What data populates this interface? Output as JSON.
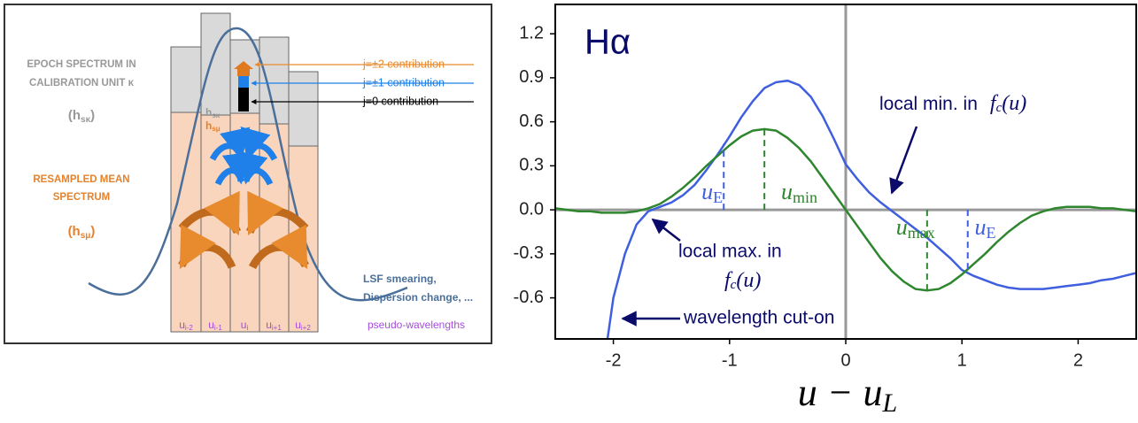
{
  "diagram": {
    "epoch_label": [
      "EPOCH SPECTRUM IN",
      "CALIBRATION UNIT κ"
    ],
    "epoch_symbol": {
      "open": "(h",
      "sub": "sκ",
      "close": ")"
    },
    "resampled_label": [
      "RESAMPLED MEAN",
      "SPECTRUM"
    ],
    "resampled_symbol": {
      "open": "(h",
      "sub": "sμ",
      "close": ")"
    },
    "bar_epoch": {
      "main": "h",
      "sub": "sκ"
    },
    "bar_mean": {
      "main": "h",
      "sub": "sμ"
    },
    "contributions": [
      "j=±2 contribution",
      "j=±1 contribution",
      "j=0 contribution"
    ],
    "lsf_note": [
      "LSF smearing,",
      "Dispersion change, ..."
    ],
    "pixels": [
      {
        "main": "u",
        "sub": "i-2"
      },
      {
        "main": "u",
        "sub": "i-1"
      },
      {
        "main": "u",
        "sub": "i"
      },
      {
        "main": "u",
        "sub": "i+1"
      },
      {
        "main": "u",
        "sub": "i+2"
      }
    ],
    "pixel_axis": "pseudo-wavelengths"
  },
  "chart_data": {
    "type": "line",
    "title": "Hα",
    "xlabel": {
      "main": "u − u",
      "sub": "L"
    },
    "xlim": [
      -2.5,
      2.5
    ],
    "ylim": [
      -0.88,
      1.4
    ],
    "xticks": [
      -2,
      -1,
      0,
      1,
      2
    ],
    "yticks": [
      1.2,
      0.9,
      0.6,
      0.3,
      {
        "value": 0,
        "label": "0.0"
      },
      -0.3,
      -0.6
    ],
    "zero_lines": true,
    "series": [
      {
        "color": "#3f5fdf",
        "x": [
          -2.05,
          -2.0,
          -1.9,
          -1.8,
          -1.7,
          -1.6,
          -1.5,
          -1.4,
          -1.3,
          -1.2,
          -1.1,
          -1.0,
          -0.9,
          -0.8,
          -0.7,
          -0.6,
          -0.5,
          -0.4,
          -0.3,
          -0.2,
          -0.1,
          0.0,
          0.1,
          0.2,
          0.3,
          0.4,
          0.5,
          0.6,
          0.7,
          0.8,
          0.9,
          1.0,
          1.1,
          1.2,
          1.3,
          1.4,
          1.5,
          1.6,
          1.7,
          1.8,
          1.9,
          2.0,
          2.1,
          2.2,
          2.3,
          2.4,
          2.5
        ],
        "values": [
          -0.88,
          -0.6,
          -0.3,
          -0.1,
          -0.01,
          0.02,
          0.05,
          0.1,
          0.17,
          0.27,
          0.38,
          0.5,
          0.63,
          0.74,
          0.83,
          0.87,
          0.88,
          0.85,
          0.77,
          0.64,
          0.48,
          0.31,
          0.21,
          0.12,
          0.05,
          -0.01,
          -0.07,
          -0.13,
          -0.19,
          -0.26,
          -0.33,
          -0.41,
          -0.45,
          -0.48,
          -0.51,
          -0.53,
          -0.54,
          -0.54,
          -0.54,
          -0.53,
          -0.52,
          -0.51,
          -0.5,
          -0.48,
          -0.47,
          -0.45,
          -0.43
        ]
      },
      {
        "color": "#2e862e",
        "x": [
          -2.5,
          -2.4,
          -2.3,
          -2.2,
          -2.1,
          -2.0,
          -1.9,
          -1.8,
          -1.7,
          -1.6,
          -1.5,
          -1.4,
          -1.3,
          -1.2,
          -1.1,
          -1.0,
          -0.9,
          -0.8,
          -0.7,
          -0.6,
          -0.5,
          -0.4,
          -0.3,
          -0.2,
          -0.1,
          0.0,
          0.1,
          0.2,
          0.3,
          0.4,
          0.5,
          0.6,
          0.7,
          0.8,
          0.9,
          1.0,
          1.1,
          1.2,
          1.3,
          1.4,
          1.5,
          1.6,
          1.7,
          1.8,
          1.9,
          2.0,
          2.1,
          2.2,
          2.3,
          2.4,
          2.5
        ],
        "values": [
          0.01,
          0.0,
          -0.01,
          -0.01,
          -0.02,
          -0.02,
          -0.02,
          -0.01,
          0.01,
          0.04,
          0.09,
          0.15,
          0.22,
          0.3,
          0.37,
          0.44,
          0.5,
          0.54,
          0.55,
          0.54,
          0.49,
          0.42,
          0.33,
          0.22,
          0.11,
          0.0,
          -0.11,
          -0.22,
          -0.33,
          -0.42,
          -0.49,
          -0.54,
          -0.55,
          -0.54,
          -0.5,
          -0.44,
          -0.37,
          -0.3,
          -0.22,
          -0.15,
          -0.09,
          -0.04,
          -0.01,
          0.01,
          0.02,
          0.02,
          0.02,
          0.01,
          0.01,
          0.0,
          -0.01
        ]
      }
    ],
    "markers": [
      {
        "x": -1.05,
        "y": 0.45,
        "color": "#3f5fdf",
        "main": "u",
        "sub": "E"
      },
      {
        "x": -0.7,
        "y": 0.55,
        "color": "#2e862e",
        "main": "u",
        "sub": "min"
      },
      {
        "x": 0.7,
        "y": -0.55,
        "color": "#2e862e",
        "main": "u",
        "sub": "max"
      },
      {
        "x": 1.05,
        "y": -0.43,
        "color": "#3f5fdf",
        "main": "u",
        "sub": "E"
      }
    ],
    "annotations": {
      "local_min": "local min. in",
      "local_max": "local max. in",
      "f": "f",
      "f_sub": "c",
      "f_arg": "(u)",
      "cut_on": "wavelength cut-on"
    }
  }
}
